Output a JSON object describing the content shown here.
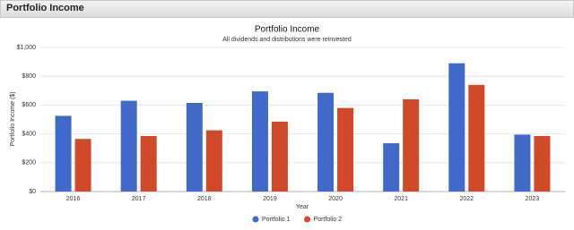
{
  "header": {
    "title": "Portfolio Income"
  },
  "chart_data": {
    "type": "bar",
    "title": "Portfolio Income",
    "subtitle": "All dividends and distributions were reinvested",
    "x_label": "Year",
    "y_label": "Portfolio Income ($)",
    "categories": [
      "2016",
      "2017",
      "2018",
      "2019",
      "2020",
      "2021",
      "2022",
      "2023"
    ],
    "series": [
      {
        "name": "Portfolio 1",
        "color": "#4169c9",
        "values": [
          525,
          630,
          615,
          695,
          685,
          335,
          890,
          395
        ]
      },
      {
        "name": "Portfolio 2",
        "color": "#d04a2a",
        "values": [
          365,
          385,
          425,
          485,
          580,
          640,
          740,
          385
        ]
      }
    ],
    "ylim": [
      0,
      1000
    ],
    "yticks": [
      {
        "value": 0,
        "label": "$0"
      },
      {
        "value": 200,
        "label": "$200"
      },
      {
        "value": 400,
        "label": "$400"
      },
      {
        "value": 600,
        "label": "$600"
      },
      {
        "value": 800,
        "label": "$800"
      },
      {
        "value": 1000,
        "label": "$1,000"
      }
    ],
    "grid": true
  }
}
